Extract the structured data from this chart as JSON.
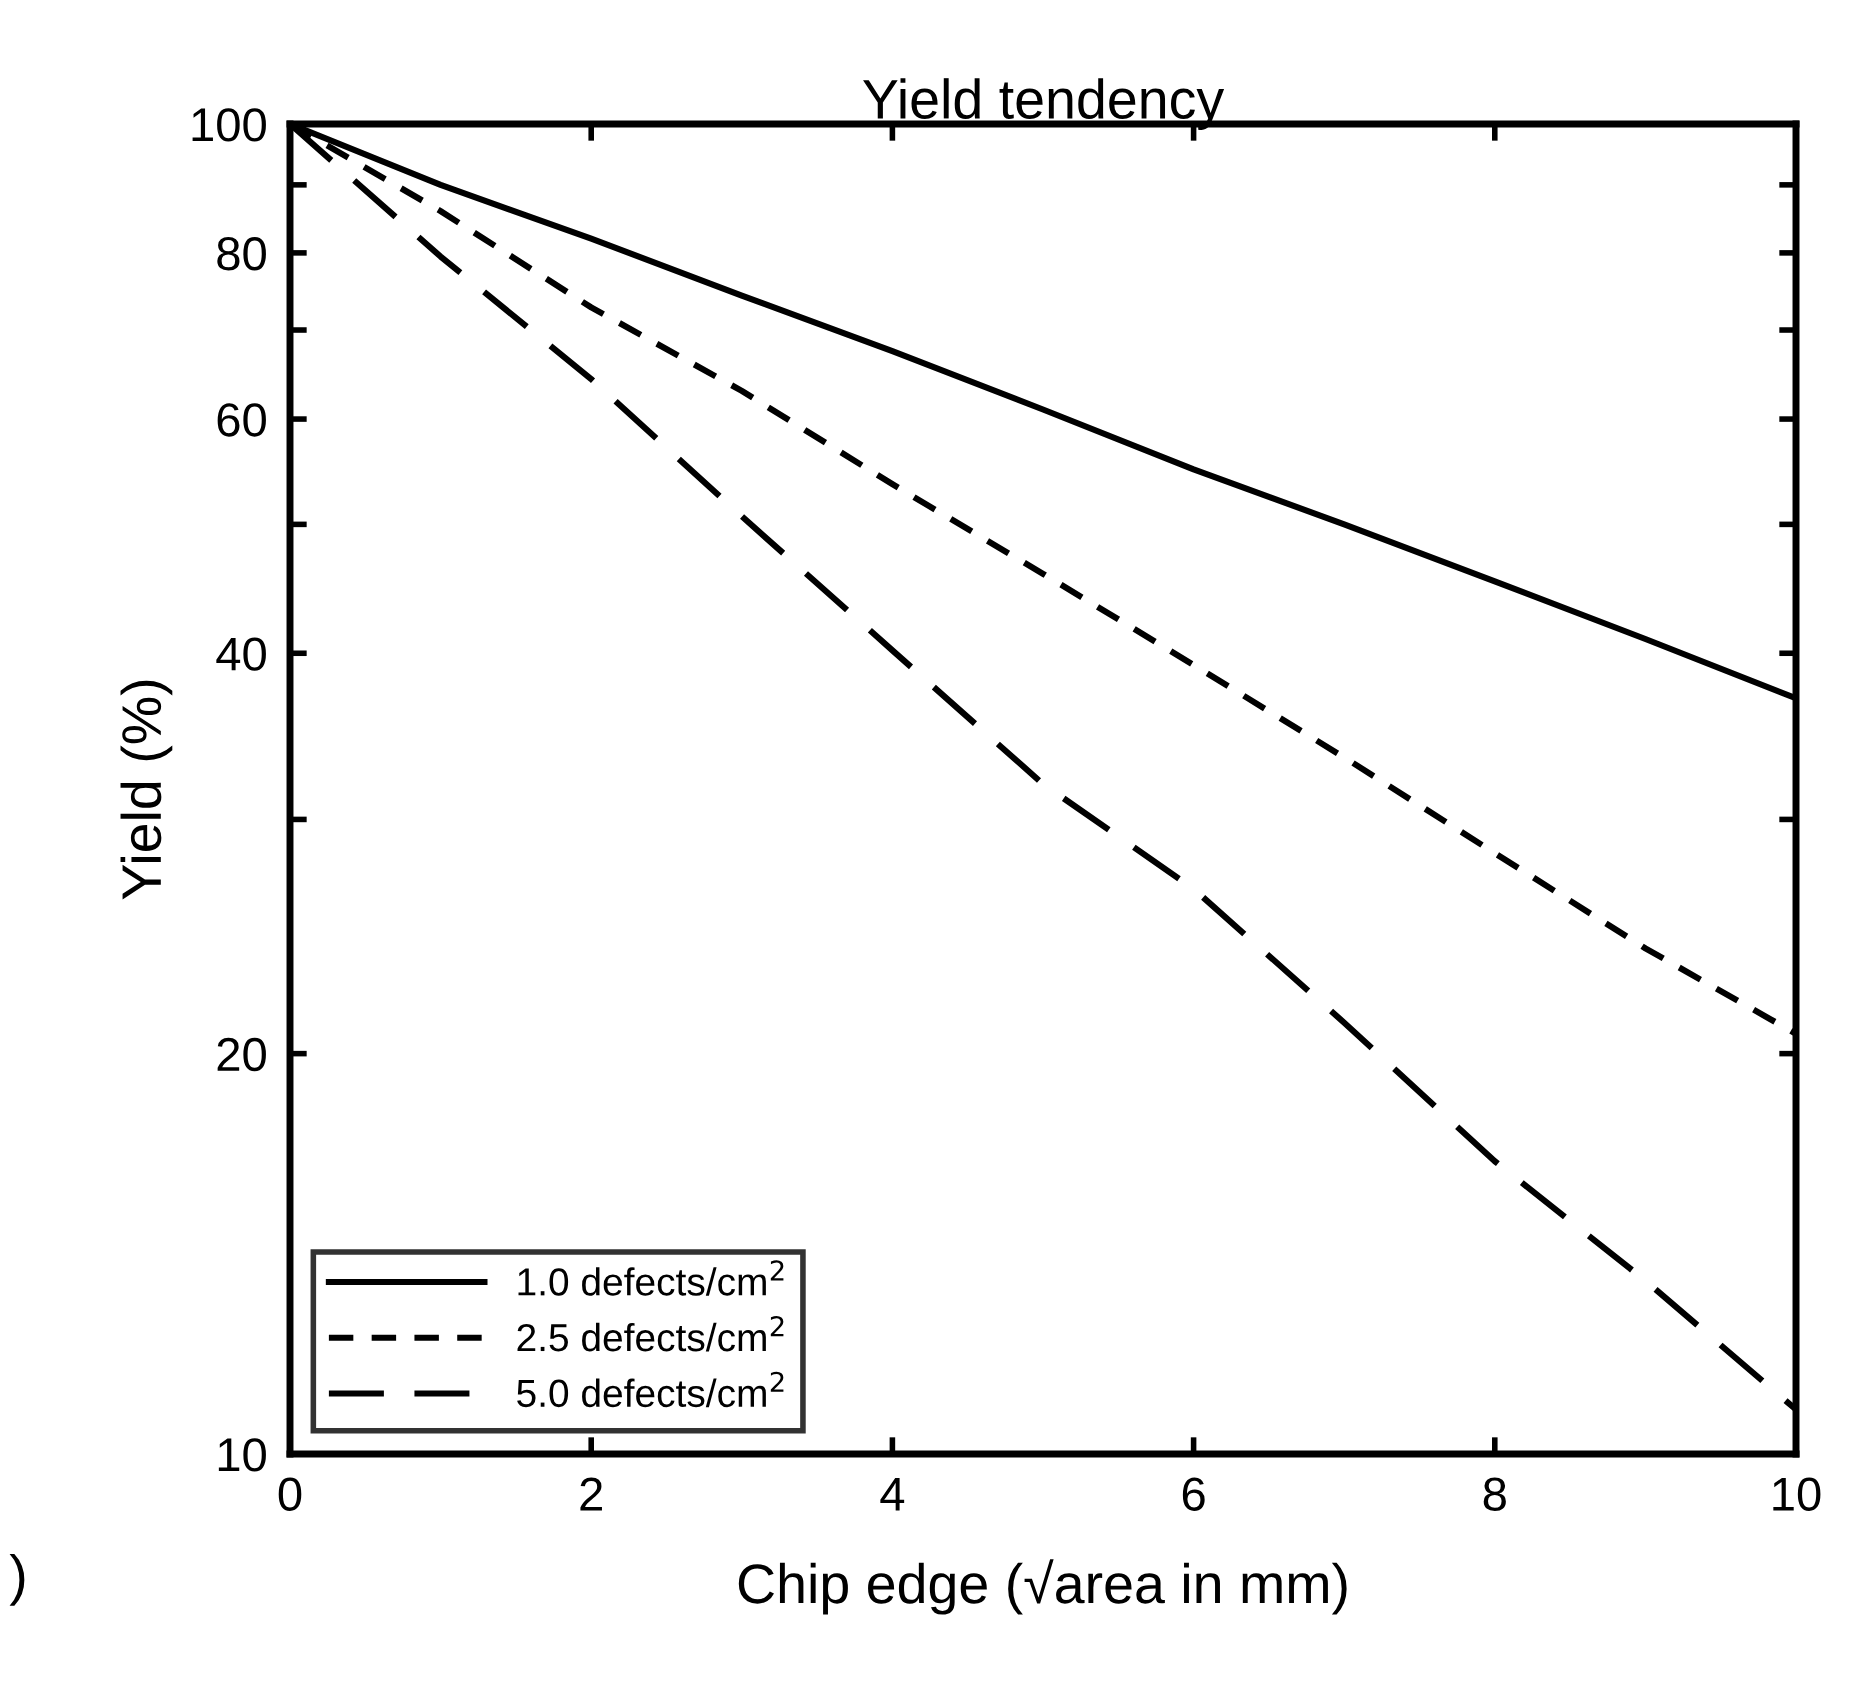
{
  "chart_data": {
    "type": "line",
    "title": "Yield tendency",
    "xlabel": "Chip edge (√area in mm)",
    "ylabel": "Yield (%)",
    "x": [
      0,
      1,
      2,
      3,
      4,
      5,
      6,
      7,
      8,
      9,
      10
    ],
    "series": [
      {
        "name": "1.0 defects/cm$^{2}$",
        "color": "#000000",
        "line_style": "solid",
        "values": [
          100,
          90,
          82,
          74.3,
          67.5,
          61,
          55,
          50,
          45.3,
          41,
          37
        ]
      },
      {
        "name": "2.5 defects/cm$^{2}$",
        "color": "#000000",
        "line_style": "dotted",
        "values": [
          100,
          86,
          72.8,
          63,
          53.6,
          45.9,
          39.2,
          33.4,
          28.3,
          24,
          20.7
        ]
      },
      {
        "name": "5.0 defects/cm$^{2}$",
        "color": "#000000",
        "line_style": "dashed",
        "values": [
          100,
          79.5,
          64.3,
          50.7,
          40.2,
          31.9,
          26.6,
          21.1,
          16.6,
          13.5,
          10.8
        ]
      }
    ],
    "log": "y",
    "xlim": [
      0,
      10
    ],
    "xticks": [
      0,
      2,
      4,
      6,
      8,
      10
    ],
    "ylim": [
      10,
      100
    ],
    "yticks": [
      10,
      20,
      {
        "value": 30,
        "label": null
      },
      40,
      {
        "value": 50,
        "label": null
      },
      60,
      {
        "value": 70,
        "label": null
      },
      80,
      {
        "value": 90,
        "label": null
      },
      100
    ],
    "grid": false,
    "legend": "bottom left",
    "marker": "none",
    "annotations": [
      ")"
    ]
  }
}
